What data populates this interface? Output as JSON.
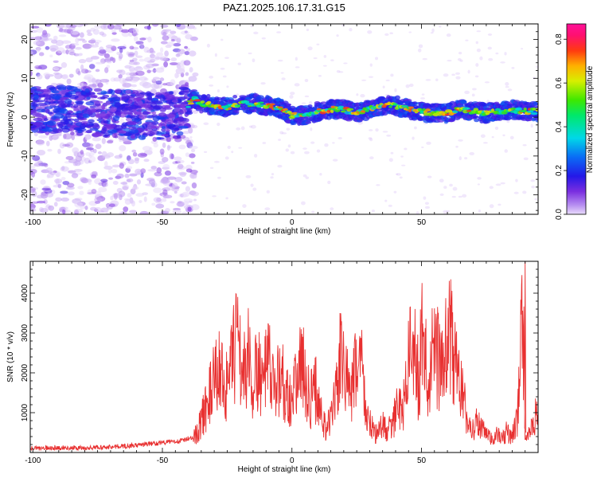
{
  "title": "PAZ1.2025.106.17.31.G15",
  "colors": {
    "snr_line": "#e83030",
    "frame": "#000000",
    "background": "#ffffff"
  },
  "chart_data": [
    {
      "type": "heatmap",
      "xlabel": "Height of straight line (km)",
      "ylabel": "Frequency (Hz)",
      "xlim": [
        -101,
        95
      ],
      "ylim": [
        -25,
        24
      ],
      "x_ticks": [
        "-100",
        "-50",
        "0",
        "50"
      ],
      "y_ticks": [
        "-20",
        "-10",
        "0",
        "10",
        "20"
      ],
      "colorbar": {
        "label": "Normalized spectral amplitude",
        "range": [
          0.0,
          0.87
        ],
        "ticks": [
          "0.0",
          "0.2",
          "0.4",
          "0.6",
          "0.8"
        ]
      },
      "ridge": {
        "x": [
          -101,
          -90,
          -80,
          -70,
          -60,
          -50,
          -44,
          -40,
          -38,
          -35,
          -30,
          -25,
          -20,
          -15,
          -10,
          -5,
          0,
          5,
          10,
          15,
          20,
          25,
          30,
          35,
          40,
          45,
          50,
          55,
          60,
          65,
          70,
          75,
          80,
          85,
          90,
          95
        ],
        "y": [
          1.5,
          2,
          1.5,
          1,
          0.5,
          0,
          0.5,
          3,
          5,
          3.5,
          3,
          2.5,
          3.5,
          3.5,
          3,
          2.5,
          0.5,
          0.5,
          1.5,
          2,
          2,
          1,
          2,
          3,
          3,
          2,
          1.5,
          1,
          1,
          2,
          1.5,
          1,
          1.5,
          2,
          1.5,
          1.5
        ]
      },
      "noise_region": {
        "x": [
          -101,
          -40
        ],
        "freq_spread": [
          -25,
          24
        ]
      },
      "signal_region": {
        "x": [
          -40,
          95
        ],
        "freq_spread": [
          -3,
          5
        ]
      }
    },
    {
      "type": "line",
      "xlabel": "Height of straight line (km)",
      "ylabel": "SNR (10 * v/v)",
      "xlim": [
        -101,
        95
      ],
      "ylim": [
        0,
        4800
      ],
      "x_ticks": [
        "-100",
        "-50",
        "0",
        "50"
      ],
      "y_ticks": [
        "1000",
        "2000",
        "3000",
        "4000"
      ],
      "series": [
        {
          "color": "#e83030",
          "x": [
            -101,
            -90,
            -80,
            -70,
            -60,
            -50,
            -42,
            -38,
            -36,
            -35,
            -33,
            -31,
            -29,
            -27,
            -25,
            -23,
            -21,
            -20,
            -19,
            -17,
            -15,
            -13,
            -11,
            -9,
            -7,
            -5,
            -3,
            -1,
            1,
            3,
            5,
            7,
            9,
            11,
            13,
            15,
            17,
            19,
            21,
            23,
            25,
            26,
            27,
            29,
            31,
            33,
            35,
            37,
            39,
            41,
            43,
            45,
            46,
            47,
            49,
            50,
            51,
            53,
            55,
            57,
            59,
            61,
            63,
            65,
            67,
            69,
            71,
            73,
            75,
            77,
            79,
            81,
            83,
            85,
            87,
            89,
            90,
            91,
            93,
            95
          ],
          "y": [
            100,
            120,
            110,
            140,
            180,
            250,
            300,
            400,
            700,
            900,
            1400,
            1800,
            2300,
            2400,
            1800,
            2600,
            3300,
            2900,
            2200,
            2800,
            1900,
            2500,
            2000,
            2600,
            1700,
            2300,
            2000,
            1600,
            1800,
            2700,
            2200,
            1500,
            1900,
            1200,
            700,
            900,
            1800,
            2800,
            2200,
            1600,
            2600,
            3100,
            2400,
            1000,
            700,
            500,
            800,
            600,
            900,
            1300,
            1400,
            2600,
            3500,
            2900,
            2000,
            3400,
            2700,
            2100,
            3200,
            2500,
            2800,
            3400,
            2600,
            2000,
            1200,
            600,
            900,
            700,
            500,
            400,
            500,
            400,
            600,
            500,
            900,
            4800,
            600,
            400,
            800,
            1200
          ]
        }
      ]
    }
  ]
}
